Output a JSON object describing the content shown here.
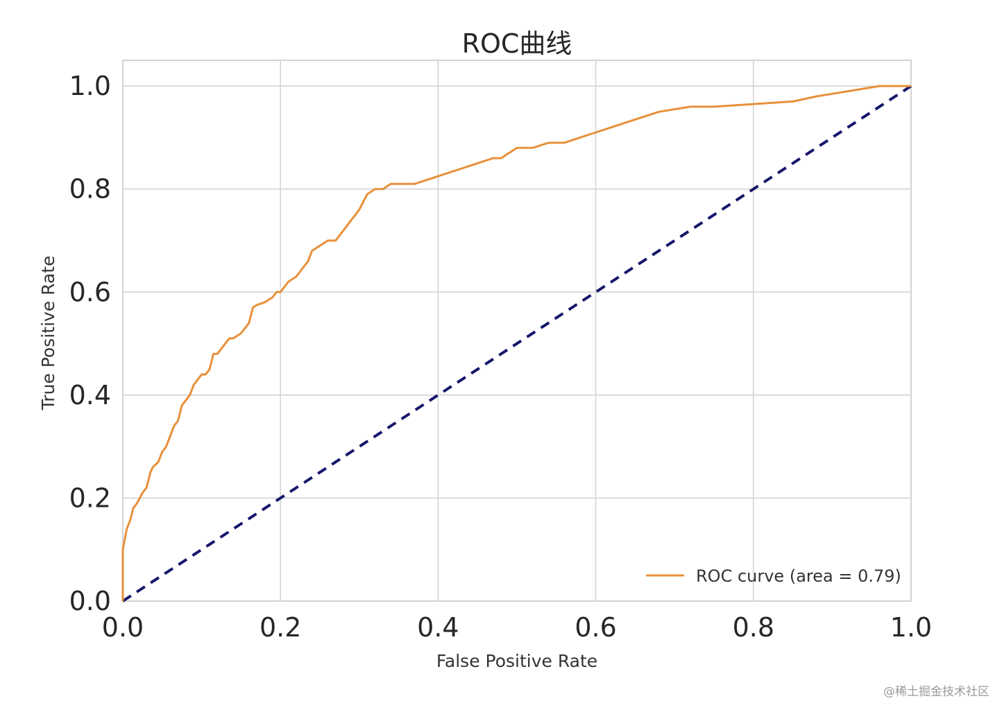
{
  "chart_data": {
    "type": "line",
    "title": "ROC曲线",
    "xlabel": "False Positive Rate",
    "ylabel": "True Positive Rate",
    "xlim": [
      0.0,
      1.0
    ],
    "ylim": [
      0.0,
      1.05
    ],
    "xticks": [
      "0.0",
      "0.2",
      "0.4",
      "0.6",
      "0.8",
      "1.0"
    ],
    "yticks": [
      "0.0",
      "0.2",
      "0.4",
      "0.6",
      "0.8",
      "1.0"
    ],
    "grid": true,
    "legend_position": "lower-right",
    "series": [
      {
        "name": "ROC curve (area = 0.79)",
        "color": "#e8903a",
        "style": "solid",
        "x": [
          0.0,
          0.0,
          0.005,
          0.01,
          0.013,
          0.018,
          0.025,
          0.03,
          0.035,
          0.038,
          0.045,
          0.05,
          0.055,
          0.06,
          0.065,
          0.07,
          0.075,
          0.08,
          0.085,
          0.09,
          0.095,
          0.1,
          0.105,
          0.11,
          0.115,
          0.12,
          0.125,
          0.13,
          0.135,
          0.14,
          0.15,
          0.155,
          0.16,
          0.165,
          0.17,
          0.18,
          0.19,
          0.195,
          0.2,
          0.21,
          0.22,
          0.23,
          0.235,
          0.24,
          0.25,
          0.26,
          0.27,
          0.275,
          0.28,
          0.29,
          0.295,
          0.3,
          0.31,
          0.32,
          0.33,
          0.34,
          0.35,
          0.37,
          0.39,
          0.41,
          0.43,
          0.45,
          0.47,
          0.48,
          0.5,
          0.52,
          0.54,
          0.56,
          0.58,
          0.6,
          0.62,
          0.64,
          0.66,
          0.68,
          0.7,
          0.72,
          0.75,
          0.8,
          0.85,
          0.88,
          0.9,
          0.92,
          0.94,
          0.96,
          0.98,
          1.0
        ],
        "y": [
          0.0,
          0.1,
          0.14,
          0.16,
          0.18,
          0.19,
          0.21,
          0.22,
          0.25,
          0.26,
          0.27,
          0.29,
          0.3,
          0.32,
          0.34,
          0.35,
          0.38,
          0.39,
          0.4,
          0.42,
          0.43,
          0.44,
          0.44,
          0.45,
          0.48,
          0.48,
          0.49,
          0.5,
          0.51,
          0.51,
          0.52,
          0.53,
          0.54,
          0.57,
          0.575,
          0.58,
          0.59,
          0.6,
          0.6,
          0.62,
          0.63,
          0.65,
          0.66,
          0.68,
          0.69,
          0.7,
          0.7,
          0.71,
          0.72,
          0.74,
          0.75,
          0.76,
          0.79,
          0.8,
          0.8,
          0.81,
          0.81,
          0.81,
          0.82,
          0.83,
          0.84,
          0.85,
          0.86,
          0.86,
          0.88,
          0.88,
          0.89,
          0.89,
          0.9,
          0.91,
          0.92,
          0.93,
          0.94,
          0.95,
          0.955,
          0.96,
          0.96,
          0.965,
          0.97,
          0.98,
          0.985,
          0.99,
          0.995,
          1.0,
          1.0,
          1.0
        ]
      },
      {
        "name": "",
        "color": "#15166b",
        "style": "dashed",
        "x": [
          0.0,
          1.0
        ],
        "y": [
          0.0,
          1.0
        ]
      }
    ]
  },
  "watermark": "@稀土掘金技术社区"
}
